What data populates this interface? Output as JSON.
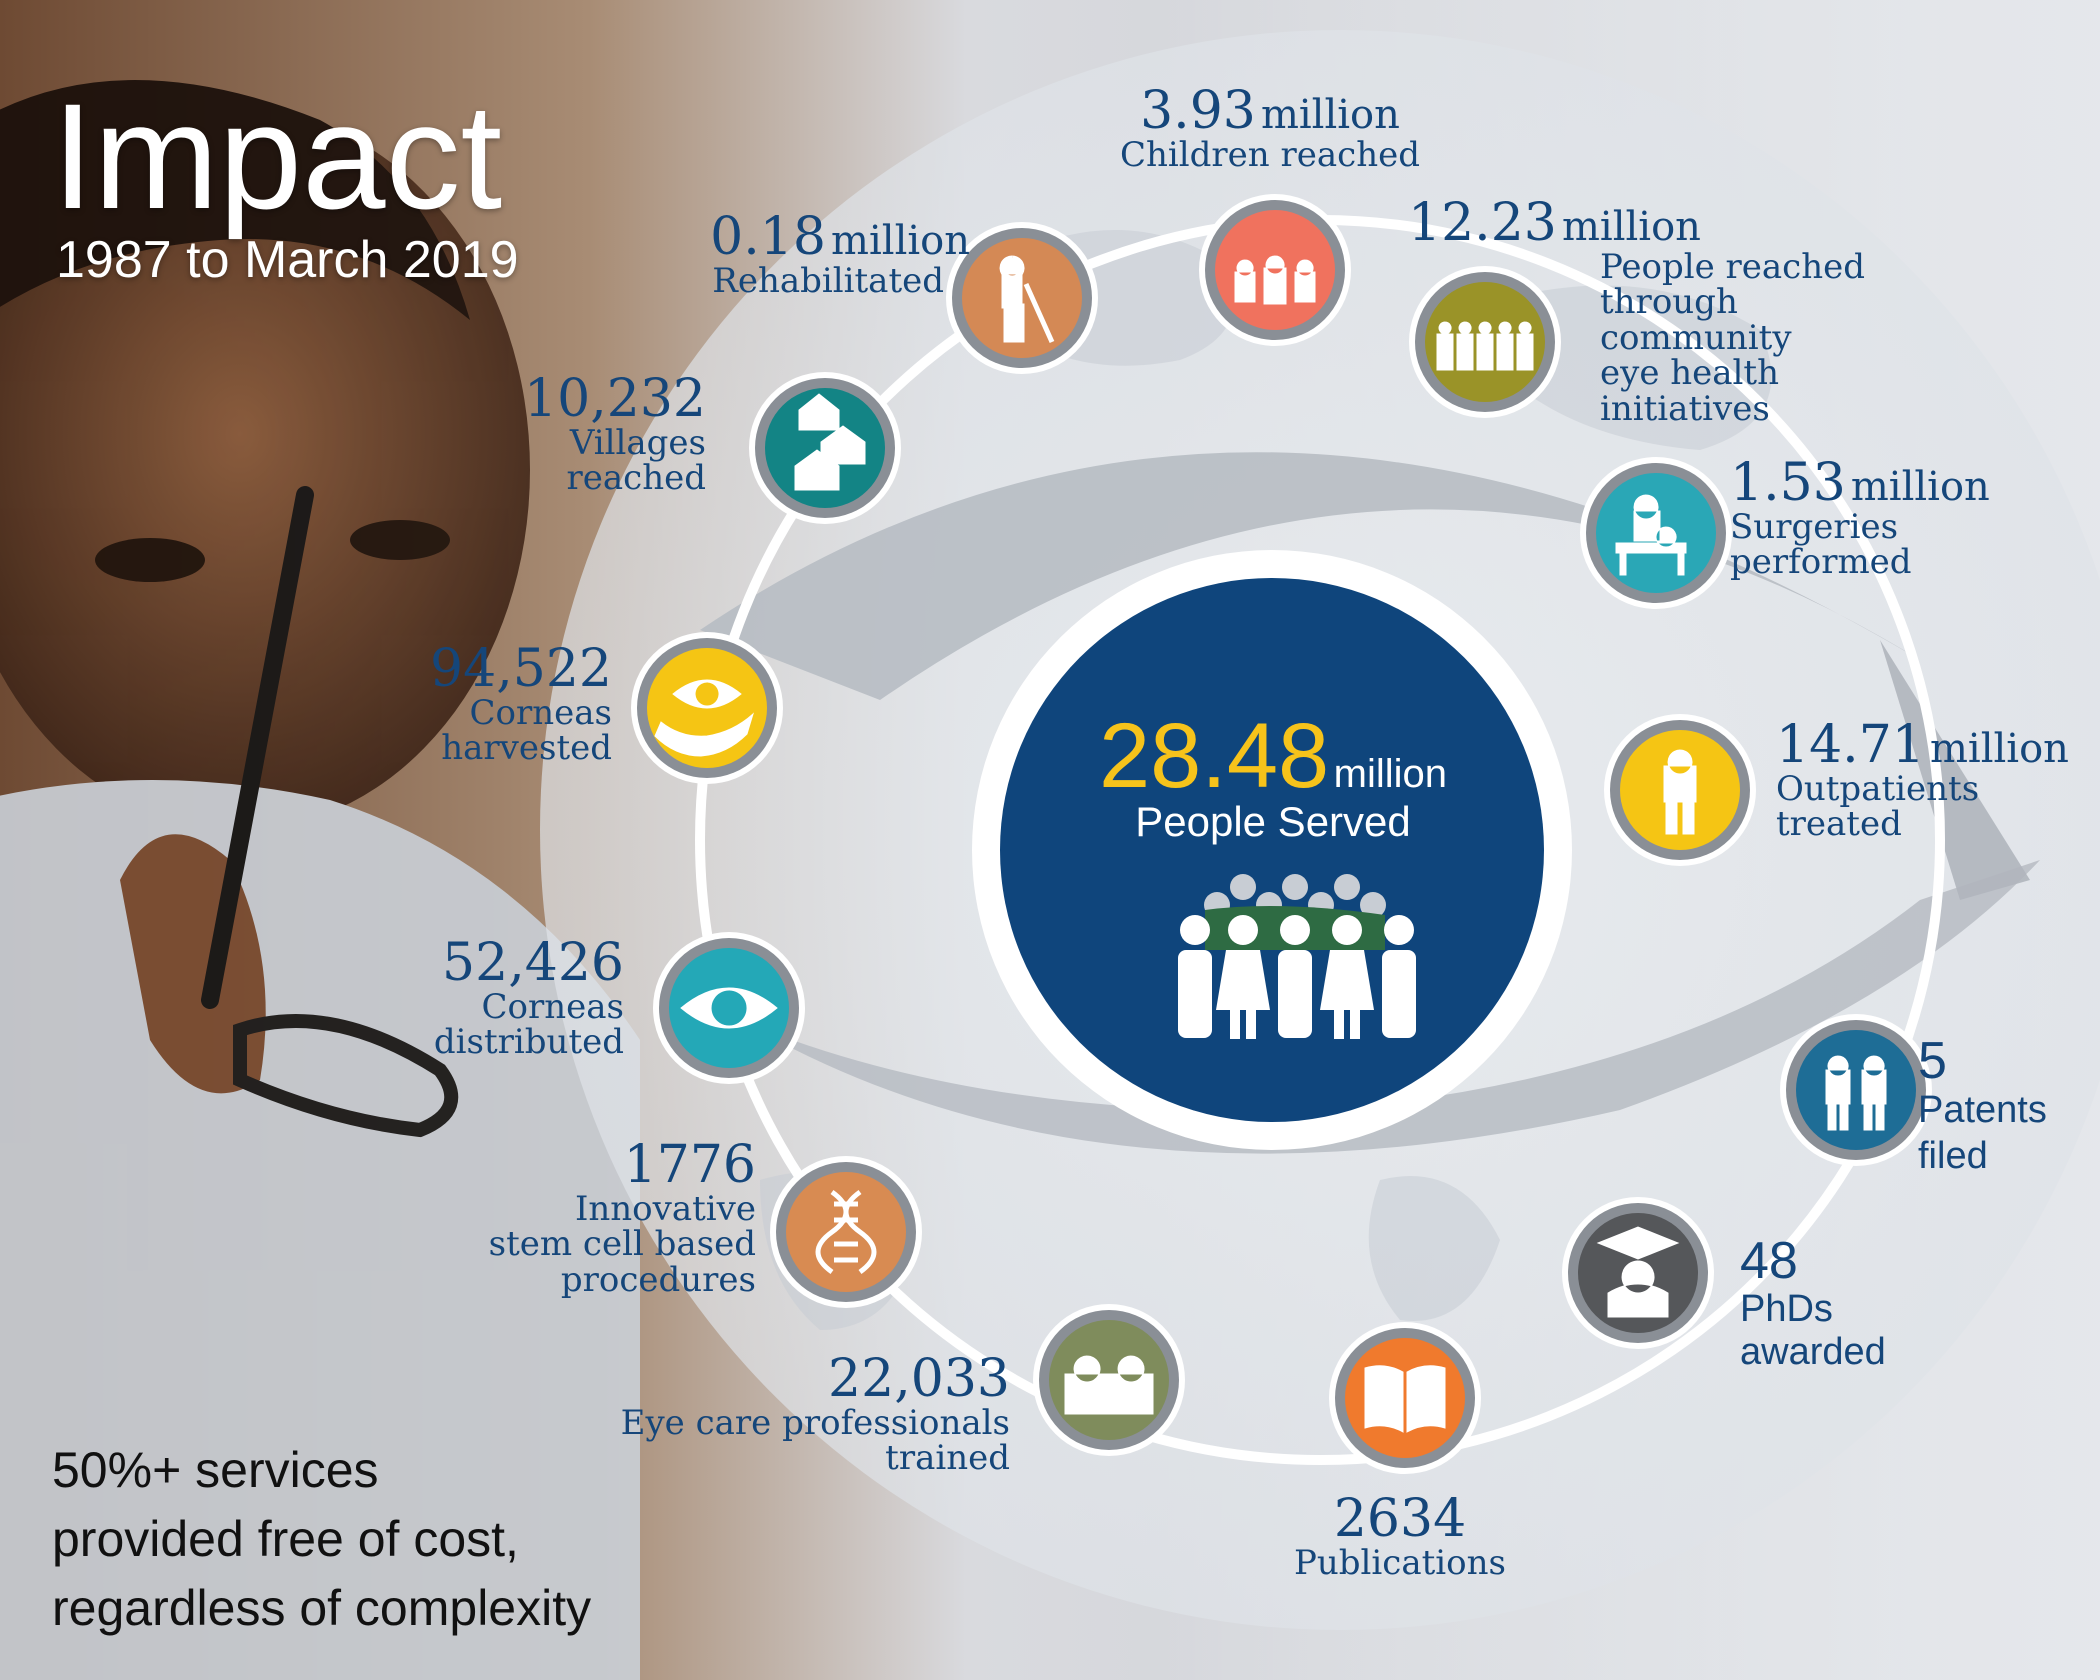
{
  "header": {
    "title": "Impact",
    "subtitle": "1987 to March 2019"
  },
  "center": {
    "value": "28.48",
    "unit": "million",
    "label": "People Served"
  },
  "footer": {
    "lines": [
      "50%+ services",
      "provided free of cost,",
      "regardless of complexity"
    ]
  },
  "stats": [
    {
      "value": "3.93",
      "unit": "million",
      "label": [
        "Children reached"
      ],
      "icon": "children-icon",
      "color": "#f0725e"
    },
    {
      "value": "12.23",
      "unit": "million",
      "label": [
        "People reached",
        "through community",
        "eye health initiatives"
      ],
      "icon": "community-icon",
      "color": "#9a9328"
    },
    {
      "value": "1.53",
      "unit": "million",
      "label": [
        "Surgeries",
        "performed"
      ],
      "icon": "surgery-icon",
      "color": "#2aa7b6"
    },
    {
      "value": "14.71",
      "unit": "million",
      "label": [
        "Outpatients",
        "treated"
      ],
      "icon": "outpatient-icon",
      "color": "#f5c514"
    },
    {
      "value": "5",
      "unit": "",
      "label": [
        "Patents",
        "filed"
      ],
      "icon": "patent-icon",
      "color": "#1e6d96"
    },
    {
      "value": "48",
      "unit": "",
      "label": [
        "PhDs",
        "awarded"
      ],
      "icon": "graduate-icon",
      "color": "#55575a"
    },
    {
      "value": "2634",
      "unit": "",
      "label": [
        "Publications"
      ],
      "icon": "book-icon",
      "color": "#f07a2d"
    },
    {
      "value": "22,033",
      "unit": "",
      "label": [
        "Eye care professionals",
        "trained"
      ],
      "icon": "doctors-icon",
      "color": "#7f8c5c"
    },
    {
      "value": "1776",
      "unit": "",
      "label": [
        "Innovative",
        "stem cell based",
        "procedures"
      ],
      "icon": "dna-icon",
      "color": "#d88b52"
    },
    {
      "value": "52,426",
      "unit": "",
      "label": [
        "Corneas",
        "distributed"
      ],
      "icon": "eye-icon",
      "color": "#24a8b7"
    },
    {
      "value": "94,522",
      "unit": "",
      "label": [
        "Corneas",
        "harvested"
      ],
      "icon": "eye-hand-icon",
      "color": "#f5c514"
    },
    {
      "value": "10,232",
      "unit": "",
      "label": [
        "Villages",
        "reached"
      ],
      "icon": "house-icon",
      "color": "#138485"
    },
    {
      "value": "0.18",
      "unit": "million",
      "label": [
        "Rehabilitated"
      ],
      "icon": "cane-icon",
      "color": "#d48955"
    }
  ],
  "colors": {
    "navy": "#0f457c",
    "gold": "#f6c31b",
    "text": "#15467a"
  }
}
